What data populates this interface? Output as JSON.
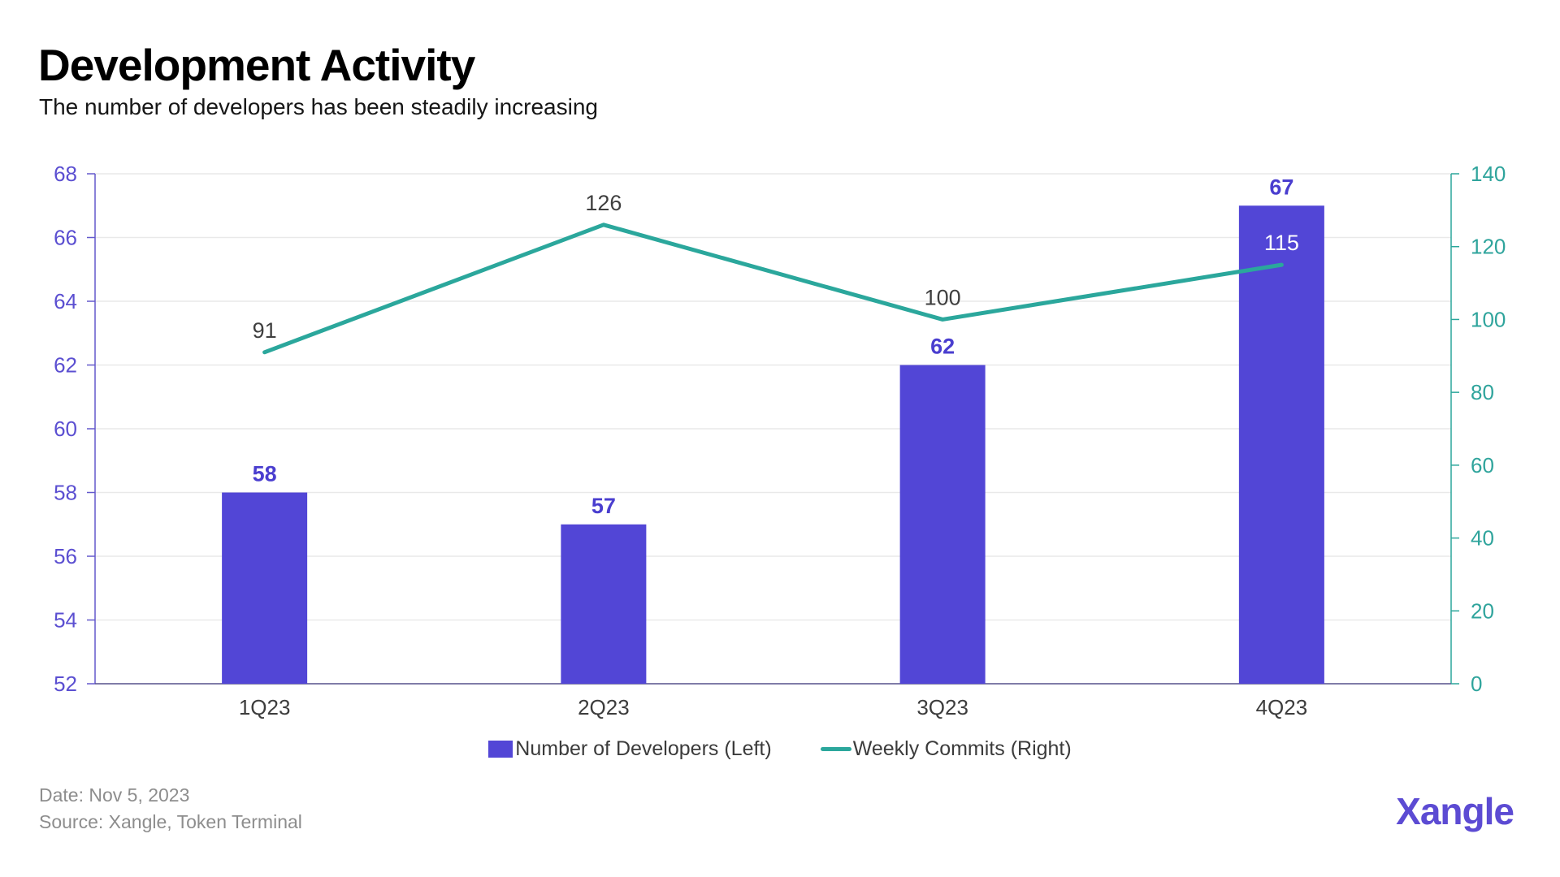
{
  "header": {
    "title": "Development Activity",
    "subtitle": "The number of developers has been steadily increasing"
  },
  "legend": [
    {
      "label": "Number of Developers (Left)",
      "type": "bar"
    },
    {
      "label": "Weekly Commits (Right)",
      "type": "line"
    }
  ],
  "footer": {
    "date": "Date: Nov 5, 2023",
    "source": "Source: Xangle, Token Terminal",
    "logo": "Xangle"
  },
  "colors": {
    "bar": "#5246d6",
    "bar_label": "#4a3ecf",
    "line": "#2ba79c",
    "left_axis": "#6459cc",
    "left_tick_label": "#5b4fd1",
    "right_axis": "#2ca69b",
    "right_tick_label": "#2fa49c",
    "grid": "#e9e9e9",
    "baseline": "#56508c",
    "line_label": "#3f3f3f",
    "line_label_inside": "#ffffff",
    "x_label": "#3d3d3d"
  },
  "chart_data": {
    "type": "combo",
    "categories": [
      "1Q23",
      "2Q23",
      "3Q23",
      "4Q23"
    ],
    "series": [
      {
        "name": "Number of Developers (Left)",
        "type": "bar",
        "axis": "left",
        "values": [
          58,
          57,
          62,
          67
        ]
      },
      {
        "name": "Weekly Commits (Right)",
        "type": "line",
        "axis": "right",
        "values": [
          91,
          126,
          100,
          115
        ]
      }
    ],
    "title": "Development Activity",
    "xlabel": "",
    "ylabel_left": "Number of Developers",
    "ylabel_right": "Weekly Commits",
    "left_axis": {
      "min": 52,
      "max": 68,
      "step": 2,
      "ticks": [
        52,
        54,
        56,
        58,
        60,
        62,
        64,
        66,
        68
      ]
    },
    "right_axis": {
      "min": 0,
      "max": 140,
      "step": 20,
      "ticks": [
        0,
        20,
        40,
        60,
        80,
        100,
        120,
        140
      ]
    },
    "grid": "horizontal",
    "legend_position": "bottom"
  }
}
